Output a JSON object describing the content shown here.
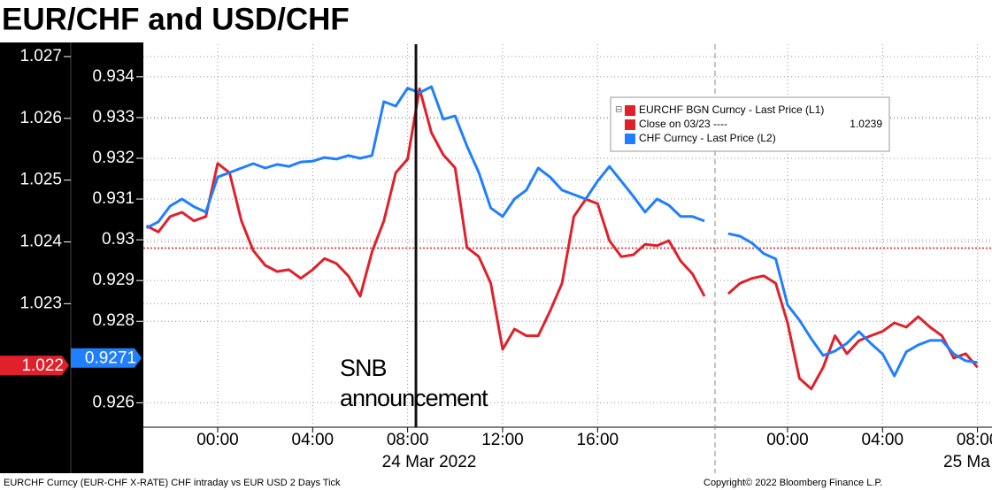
{
  "chart_data": {
    "type": "line",
    "title": "EUR/CHF and USD/CHF",
    "footer_left": "EURCHF Curncy (EUR-CHF X-RATE) CHF intraday vs EUR USD 2 Days  Tick",
    "footer_right": "Copyright© 2022 Bloomberg Finance L.P.",
    "x_date_labels": [
      "24 Mar 2022",
      "25 Ma"
    ],
    "x": [
      -3,
      -2.5,
      -2,
      -1.5,
      -1,
      -0.5,
      0,
      0.5,
      1,
      1.5,
      2,
      2.5,
      3,
      3.5,
      4,
      4.5,
      5,
      5.5,
      6,
      6.5,
      7,
      7.5,
      8,
      8.5,
      9,
      9.5,
      10,
      10.5,
      11,
      11.5,
      12,
      12.5,
      13,
      13.5,
      14,
      14.5,
      15,
      15.5,
      16,
      16.5,
      17,
      17.5,
      18,
      18.5,
      19,
      19.5,
      20,
      20.5,
      21,
      21.5,
      22,
      22.5,
      23,
      23.5,
      24,
      24.5,
      25,
      25.5,
      26,
      26.5,
      27,
      27.5,
      28,
      28.5,
      29,
      29.5,
      30,
      30.5,
      31,
      31.5,
      32
    ],
    "xlim": [
      -3.13,
      32.61
    ],
    "xticks": [
      {
        "value": 0,
        "label": "00:00"
      },
      {
        "value": 4,
        "label": "04:00"
      },
      {
        "value": 8,
        "label": "08:00"
      },
      {
        "value": 12,
        "label": "12:00"
      },
      {
        "value": 16,
        "label": "16:00"
      },
      {
        "value": 24,
        "label": "00:00"
      },
      {
        "value": 28,
        "label": "04:00"
      },
      {
        "value": 32,
        "label": "08:00"
      }
    ],
    "ylim": [
      1.021,
      1.0272
    ],
    "yticks": [
      1.023,
      1.024,
      1.025,
      1.026,
      1.027
    ],
    "y2lim": [
      0.9254,
      0.9348
    ],
    "y2ticks": [
      0.926,
      0.928,
      0.929,
      0.93,
      0.931,
      0.932,
      0.933,
      0.934
    ],
    "grid": true,
    "series": [
      {
        "name": "EURCHF BGN Curncy - Last Price (L1)",
        "color": "#e0202a",
        "axis": "y",
        "last_label": 1.022,
        "values": [
          1.02426,
          1.02416,
          1.02441,
          1.02448,
          1.02434,
          1.02441,
          1.02527,
          1.02512,
          1.02434,
          1.02386,
          1.02362,
          1.02352,
          1.02355,
          1.02341,
          1.02355,
          1.02373,
          1.02365,
          1.02345,
          1.02312,
          1.02384,
          1.02434,
          1.02512,
          1.02534,
          1.02648,
          1.02577,
          1.02541,
          1.0252,
          1.02391,
          1.02376,
          1.02333,
          1.02226,
          1.02259,
          1.02248,
          1.02248,
          1.02288,
          1.02333,
          1.02441,
          1.02469,
          1.02462,
          1.02402,
          1.02376,
          1.02379,
          1.02396,
          1.02394,
          1.02402,
          1.02369,
          1.02348,
          1.02312,
          null,
          1.02316,
          1.02333,
          1.02341,
          1.02345,
          1.02333,
          1.02269,
          1.02179,
          1.02162,
          1.02197,
          1.02248,
          1.02219,
          1.0224,
          1.02248,
          1.02255,
          1.02269,
          1.02262,
          1.02279,
          1.02262,
          1.02248,
          1.02212,
          1.02219,
          1.02197
        ]
      },
      {
        "name": "CHF Curncy - Last Price (L2)",
        "color": "#1f7fff",
        "axis": "y2",
        "last_label": 0.9271,
        "values": [
          0.93029,
          0.93044,
          0.93083,
          0.931,
          0.93081,
          0.93068,
          0.93154,
          0.93165,
          0.93176,
          0.93187,
          0.93176,
          0.93185,
          0.9318,
          0.93191,
          0.93193,
          0.93202,
          0.93198,
          0.93207,
          0.932,
          0.93207,
          0.93339,
          0.93328,
          0.93372,
          0.93361,
          0.93376,
          0.93296,
          0.93304,
          0.9323,
          0.93165,
          0.93078,
          0.93057,
          0.931,
          0.93122,
          0.93176,
          0.93154,
          0.93122,
          0.93111,
          0.931,
          0.93144,
          0.9318,
          0.93144,
          0.93107,
          0.93068,
          0.931,
          0.93085,
          0.93057,
          0.93057,
          0.93046,
          null,
          0.93015,
          0.93009,
          0.92992,
          0.92966,
          0.92953,
          0.9284,
          0.92803,
          0.92757,
          0.92716,
          0.92727,
          0.92746,
          0.92775,
          0.92746,
          0.9272,
          0.92666,
          0.92725,
          0.92742,
          0.92753,
          0.92753,
          0.9272,
          0.92703,
          0.92699
        ]
      }
    ],
    "reference_line": {
      "name": "Close on 03/23 ----",
      "value": 1.0239,
      "color": "#e0202a"
    },
    "annotation": {
      "x": 8.35,
      "lines": [
        "SNB",
        "announcement"
      ]
    }
  }
}
